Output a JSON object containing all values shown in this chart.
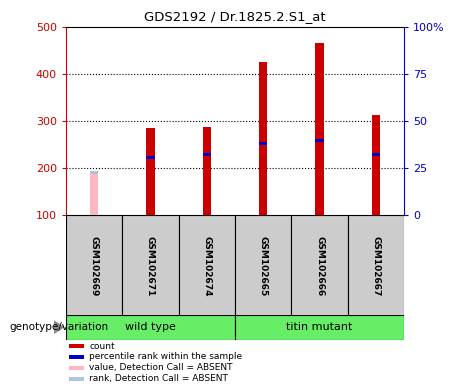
{
  "title": "GDS2192 / Dr.1825.2.S1_at",
  "samples": [
    "GSM102669",
    "GSM102671",
    "GSM102674",
    "GSM102665",
    "GSM102666",
    "GSM102667"
  ],
  "count_values": [
    null,
    285,
    288,
    425,
    465,
    312
  ],
  "absent_value": 190,
  "percentile_ranks": [
    null,
    222,
    228,
    252,
    258,
    228
  ],
  "absent_percentile_rank_value": 190,
  "bar_color": "#cc0000",
  "rank_color": "#0000cc",
  "absent_bar_color": "#ffb6c1",
  "absent_rank_color": "#b0c4de",
  "ylim_left": [
    100,
    500
  ],
  "ylim_right": [
    0,
    100
  ],
  "yticks_left": [
    100,
    200,
    300,
    400,
    500
  ],
  "yticks_right": [
    0,
    25,
    50,
    75,
    100
  ],
  "ytick_labels_right": [
    "0",
    "25",
    "50",
    "75",
    "100%"
  ],
  "ylabel_left_color": "#cc0000",
  "ylabel_right_color": "#0000cc",
  "group_label": "genotype/variation",
  "wild_type_label": "wild type",
  "titin_label": "titin mutant",
  "group_box_color": "#66ee66",
  "sample_box_color": "#cccccc",
  "legend_items": [
    {
      "label": "count",
      "color": "#cc0000"
    },
    {
      "label": "percentile rank within the sample",
      "color": "#0000cc"
    },
    {
      "label": "value, Detection Call = ABSENT",
      "color": "#ffb6c1"
    },
    {
      "label": "rank, Detection Call = ABSENT",
      "color": "#b0c4de"
    }
  ]
}
